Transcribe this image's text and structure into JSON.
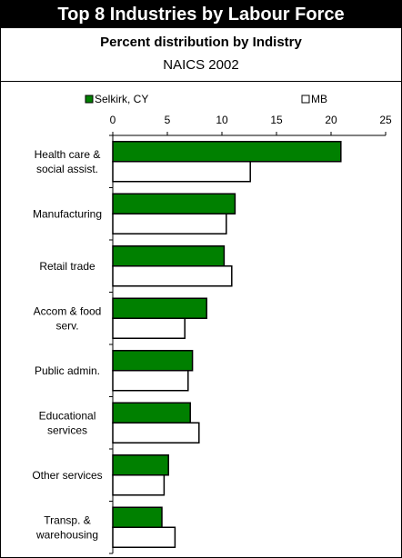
{
  "chart_data": {
    "type": "bar",
    "orientation": "horizontal",
    "title": "Top 8 Industries by Labour Force",
    "subtitle": "Percent distribution by Indistry",
    "subtitle2": "NAICS 2002",
    "categories": [
      [
        "Health care &",
        "social assist."
      ],
      [
        "Manufacturing"
      ],
      [
        "Retail trade"
      ],
      [
        "Accom & food",
        "serv."
      ],
      [
        "Public admin."
      ],
      [
        "Educational",
        "services"
      ],
      [
        "Other services"
      ],
      [
        "Transp. &",
        "warehousing"
      ]
    ],
    "series": [
      {
        "name": "Selkirk, CY",
        "color": "#008000",
        "values": [
          20.9,
          11.2,
          10.2,
          8.6,
          7.3,
          7.1,
          5.1,
          4.5
        ]
      },
      {
        "name": "MB",
        "color": "#ffffff",
        "values": [
          12.6,
          10.4,
          10.9,
          6.6,
          6.9,
          7.9,
          4.7,
          5.7
        ]
      }
    ],
    "xlim": [
      0,
      25
    ],
    "xticks": [
      "0",
      "5",
      "10",
      "15",
      "20",
      "25"
    ],
    "legend_position": "top",
    "grid": false
  }
}
